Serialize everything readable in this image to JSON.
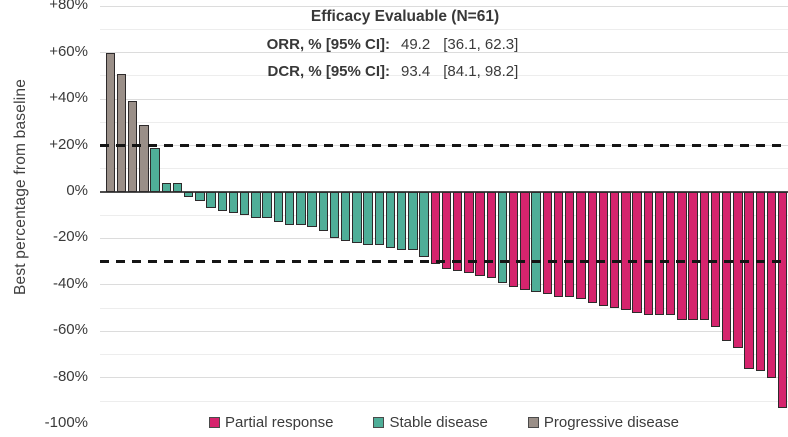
{
  "chart_data": {
    "type": "bar",
    "subtype": "waterfall",
    "title": "",
    "ylabel": "Best percentage from baseline",
    "xlabel": "",
    "x_axis_note": "individual patients, unlabeled (N=61)",
    "ylim": [
      -100,
      80
    ],
    "yticks": [
      {
        "label": "+80%",
        "value": 80
      },
      {
        "label": "+60%",
        "value": 60
      },
      {
        "label": "+40%",
        "value": 40
      },
      {
        "label": "+20%",
        "value": 20
      },
      {
        "label": "0%",
        "value": 0
      },
      {
        "label": "-20%",
        "value": -20
      },
      {
        "label": "-40%",
        "value": -40
      },
      {
        "label": "-60%",
        "value": -60
      },
      {
        "label": "-80%",
        "value": -80
      },
      {
        "label": "-100%",
        "value": -100
      }
    ],
    "minor_gridlines": [
      70,
      50,
      30,
      10,
      -10,
      -50,
      -70,
      -90
    ],
    "grid": true,
    "reference_lines": [
      {
        "value": 20,
        "style": "dashed",
        "meaning": "progressive disease threshold"
      },
      {
        "value": -30,
        "style": "dashed",
        "meaning": "partial response threshold"
      }
    ],
    "n_patients": 61,
    "patients": [
      {
        "value": 60,
        "response": "PD"
      },
      {
        "value": 51,
        "response": "PD"
      },
      {
        "value": 39,
        "response": "PD"
      },
      {
        "value": 29,
        "response": "PD"
      },
      {
        "value": 19,
        "response": "SD"
      },
      {
        "value": 4,
        "response": "SD"
      },
      {
        "value": 4,
        "response": "SD"
      },
      {
        "value": -2,
        "response": "SD"
      },
      {
        "value": -4,
        "response": "SD"
      },
      {
        "value": -7,
        "response": "SD"
      },
      {
        "value": -8,
        "response": "SD"
      },
      {
        "value": -9,
        "response": "SD"
      },
      {
        "value": -10,
        "response": "SD"
      },
      {
        "value": -11,
        "response": "SD"
      },
      {
        "value": -11,
        "response": "SD"
      },
      {
        "value": -13,
        "response": "SD"
      },
      {
        "value": -14,
        "response": "SD"
      },
      {
        "value": -14,
        "response": "SD"
      },
      {
        "value": -15,
        "response": "SD"
      },
      {
        "value": -17,
        "response": "SD"
      },
      {
        "value": -20,
        "response": "SD"
      },
      {
        "value": -21,
        "response": "SD"
      },
      {
        "value": -22,
        "response": "SD"
      },
      {
        "value": -23,
        "response": "SD"
      },
      {
        "value": -23,
        "response": "SD"
      },
      {
        "value": -24,
        "response": "SD"
      },
      {
        "value": -25,
        "response": "SD"
      },
      {
        "value": -25,
        "response": "SD"
      },
      {
        "value": -28,
        "response": "SD"
      },
      {
        "value": -31,
        "response": "PR"
      },
      {
        "value": -33,
        "response": "PR"
      },
      {
        "value": -34,
        "response": "PR"
      },
      {
        "value": -35,
        "response": "PR"
      },
      {
        "value": -36,
        "response": "PR"
      },
      {
        "value": -37,
        "response": "PR"
      },
      {
        "value": -39,
        "response": "SD"
      },
      {
        "value": -41,
        "response": "PR"
      },
      {
        "value": -42,
        "response": "PR"
      },
      {
        "value": -43,
        "response": "SD"
      },
      {
        "value": -44,
        "response": "PR"
      },
      {
        "value": -45,
        "response": "PR"
      },
      {
        "value": -45,
        "response": "PR"
      },
      {
        "value": -46,
        "response": "PR"
      },
      {
        "value": -48,
        "response": "PR"
      },
      {
        "value": -49,
        "response": "PR"
      },
      {
        "value": -50,
        "response": "PR"
      },
      {
        "value": -51,
        "response": "PR"
      },
      {
        "value": -52,
        "response": "PR"
      },
      {
        "value": -53,
        "response": "PR"
      },
      {
        "value": -53,
        "response": "PR"
      },
      {
        "value": -53,
        "response": "PR"
      },
      {
        "value": -55,
        "response": "PR"
      },
      {
        "value": -55,
        "response": "PR"
      },
      {
        "value": -55,
        "response": "PR"
      },
      {
        "value": -58,
        "response": "PR"
      },
      {
        "value": -64,
        "response": "PR"
      },
      {
        "value": -67,
        "response": "PR"
      },
      {
        "value": -76,
        "response": "PR"
      },
      {
        "value": -77,
        "response": "PR"
      },
      {
        "value": -80,
        "response": "PR"
      },
      {
        "value": -93,
        "response": "PR"
      }
    ],
    "legend_position": "bottom"
  },
  "annotation": {
    "title": "Efficacy Evaluable (N=61)",
    "rows": [
      {
        "label": "ORR, % [95% CI]:",
        "value": "49.2",
        "ci": "[36.1, 62.3]"
      },
      {
        "label": "DCR, % [95% CI]:",
        "value": "93.4",
        "ci": "[84.1, 98.2]"
      }
    ]
  },
  "legend": [
    {
      "key": "PR",
      "label": "Partial response",
      "color": "#d5246d"
    },
    {
      "key": "SD",
      "label": "Stable disease",
      "color": "#4fae98"
    },
    {
      "key": "PD",
      "label": "Progressive disease",
      "color": "#9a8f88"
    }
  ],
  "colors": {
    "partial_response": "#d5246d",
    "stable_disease": "#4fae98",
    "progressive_disease": "#9a8f88",
    "bar_border": "#2d2a2b",
    "major_gridline": "#dcdcdc",
    "minor_gridline": "#ededed",
    "zero_line": "#4d4d4d",
    "reference_line": "#151515",
    "text": "#3b3b3b",
    "background": "#ffffff"
  }
}
